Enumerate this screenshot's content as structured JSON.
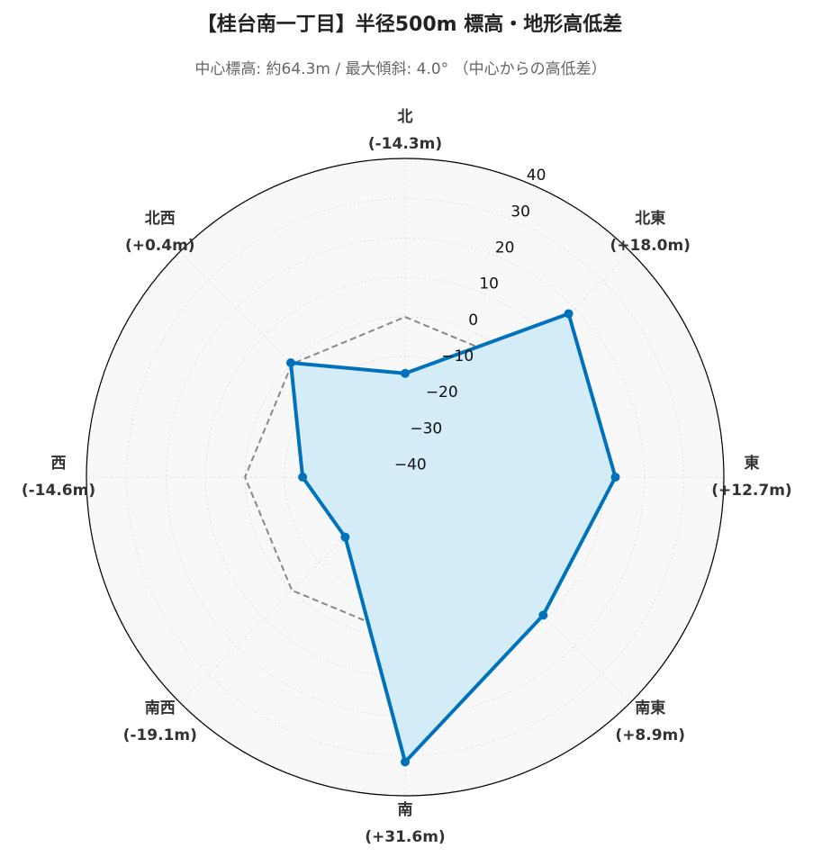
{
  "chart_data": {
    "type": "radar",
    "title": "【桂台南一丁目】半径500m 標高・地形高低差",
    "subtitle": "中心標高: 約64.3m / 最大傾斜: 4.0°  （中心からの高低差）",
    "categories": [
      "北",
      "北東",
      "東",
      "南東",
      "南",
      "南西",
      "西",
      "北西"
    ],
    "series": [
      {
        "values": [
          -14.3,
          18.0,
          12.7,
          8.9,
          31.6,
          -19.1,
          -14.6,
          0.4
        ],
        "value_labels": [
          "(-14.3m)",
          "(+18.0m)",
          "(+12.7m)",
          "(+8.9m)",
          "(+31.6m)",
          "(-19.1m)",
          "(-14.6m)",
          "(+0.4m)"
        ],
        "color": "#0072bb",
        "fill": "#d3ecf8"
      }
    ],
    "reference_line": 0,
    "ylim": [
      -40.6,
      40.2
    ],
    "yticks": [
      {
        "value": -40,
        "label": "−40"
      },
      {
        "value": -30,
        "label": "−30"
      },
      {
        "value": -20,
        "label": "−20"
      },
      {
        "value": -10,
        "label": "−10"
      },
      0,
      10,
      20,
      30,
      40
    ],
    "grid": true
  }
}
